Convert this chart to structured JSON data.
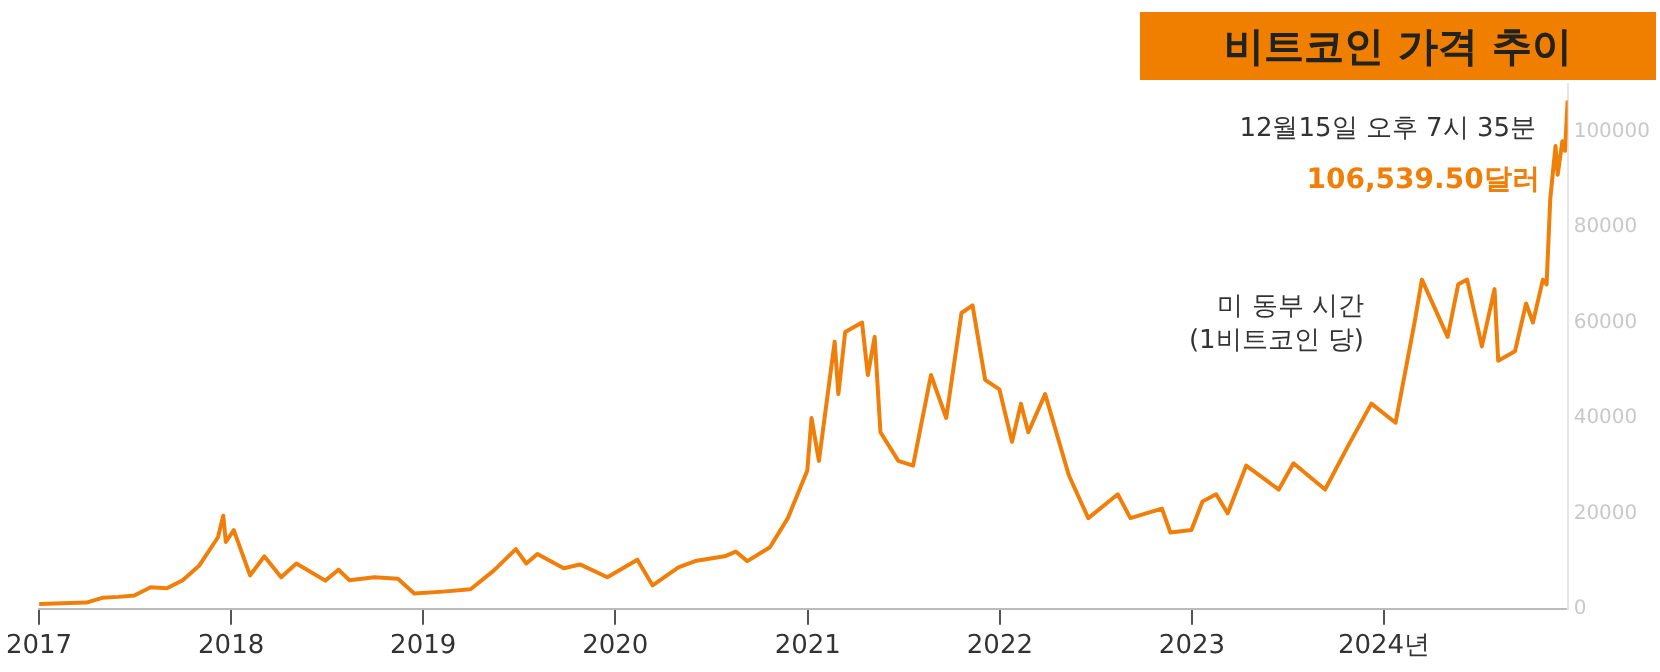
{
  "chart_data": {
    "type": "line",
    "title": "비트코인 가격 추이",
    "annotations": [
      "12월15일 오후 7시 35분",
      {
        "text": "106,539.50달러",
        "x": "2024-12-15",
        "y": 106539.5
      },
      "미 동부 시간\n(1비트코인 당)"
    ],
    "series": [
      {
        "color": "#f07f0a",
        "x": [
          "2017-01-01",
          "2017-02-01",
          "2017-03-01",
          "2017-04-01",
          "2017-05-01",
          "2017-06-01",
          "2017-07-01",
          "2017-08-01",
          "2017-09-01",
          "2017-10-01",
          "2017-11-01",
          "2017-12-07",
          "2017-12-17",
          "2017-12-22",
          "2018-01-06",
          "2018-02-06",
          "2018-03-05",
          "2018-04-06",
          "2018-05-05",
          "2018-06-29",
          "2018-07-24",
          "2018-08-14",
          "2018-09-30",
          "2018-11-14",
          "2018-12-15",
          "2019-02-08",
          "2019-04-01",
          "2019-05-15",
          "2019-06-26",
          "2019-07-16",
          "2019-08-06",
          "2019-09-25",
          "2019-10-26",
          "2019-12-17",
          "2020-02-12",
          "2020-03-12",
          "2020-04-30",
          "2020-06-01",
          "2020-07-27",
          "2020-08-17",
          "2020-09-08",
          "2020-10-21",
          "2020-11-24",
          "2020-12-31",
          "2021-01-08",
          "2021-01-22",
          "2021-02-21",
          "2021-02-28",
          "2021-03-13",
          "2021-04-14",
          "2021-04-25",
          "2021-05-08",
          "2021-05-19",
          "2021-06-22",
          "2021-07-20",
          "2021-08-23",
          "2021-09-21",
          "2021-10-20",
          "2021-11-10",
          "2021-12-04",
          "2021-12-31",
          "2022-01-24",
          "2022-02-10",
          "2022-02-24",
          "2022-03-28",
          "2022-05-12",
          "2022-06-18",
          "2022-08-13",
          "2022-09-06",
          "2022-11-05",
          "2022-11-21",
          "2022-12-31",
          "2023-01-21",
          "2023-02-16",
          "2023-03-10",
          "2023-04-14",
          "2023-06-15",
          "2023-07-13",
          "2023-09-11",
          "2023-10-24",
          "2023-12-08",
          "2024-01-23",
          "2024-02-28",
          "2024-03-13",
          "2024-05-01",
          "2024-05-21",
          "2024-06-07",
          "2024-07-05",
          "2024-07-29",
          "2024-08-05",
          "2024-09-06",
          "2024-09-27",
          "2024-10-10",
          "2024-10-29",
          "2024-11-05",
          "2024-11-12",
          "2024-11-22",
          "2024-11-26",
          "2024-12-05",
          "2024-12-10",
          "2024-12-15"
        ],
        "values": [
          1000,
          1100,
          1200,
          1300,
          2300,
          2500,
          2800,
          4500,
          4300,
          6000,
          9000,
          15000,
          19500,
          14000,
          16500,
          7000,
          11000,
          6600,
          9500,
          5900,
          8200,
          6000,
          6600,
          6300,
          3200,
          3600,
          4100,
          8000,
          12500,
          9500,
          11500,
          8500,
          9300,
          6600,
          10300,
          4900,
          8700,
          10000,
          11000,
          12000,
          10000,
          12900,
          19000,
          29000,
          40000,
          31000,
          56000,
          45000,
          58000,
          60000,
          49000,
          57000,
          37000,
          31000,
          30000,
          49000,
          40000,
          62000,
          63600,
          48000,
          46000,
          35000,
          43000,
          37000,
          45000,
          28000,
          19000,
          24000,
          19000,
          21000,
          16000,
          16500,
          22500,
          24000,
          20000,
          30000,
          25000,
          30500,
          25000,
          34000,
          43000,
          39000,
          60000,
          69000,
          57000,
          68000,
          69000,
          55000,
          67000,
          52000,
          54000,
          64000,
          60000,
          69000,
          68000,
          86000,
          97000,
          91000,
          98000,
          96000,
          106539.5
        ]
      }
    ],
    "xlim": [
      "2017-01-01",
      "2024-12-15"
    ],
    "xticks": [
      {
        "value": "2017-01-01",
        "label": "2017"
      },
      {
        "value": "2018-01-01",
        "label": "2018"
      },
      {
        "value": "2019-01-01",
        "label": "2019"
      },
      {
        "value": "2020-01-01",
        "label": "2020"
      },
      {
        "value": "2021-01-01",
        "label": "2021"
      },
      {
        "value": "2022-01-01",
        "label": "2022"
      },
      {
        "value": "2023-01-01",
        "label": "2023"
      },
      {
        "value": "2024-01-01",
        "label": "2024년"
      }
    ],
    "ylim": [
      0,
      110000
    ],
    "yticks": [
      0,
      20000,
      40000,
      60000,
      80000,
      100000
    ],
    "grid": false,
    "legend": false,
    "marker": "none",
    "line_style": "solid"
  }
}
